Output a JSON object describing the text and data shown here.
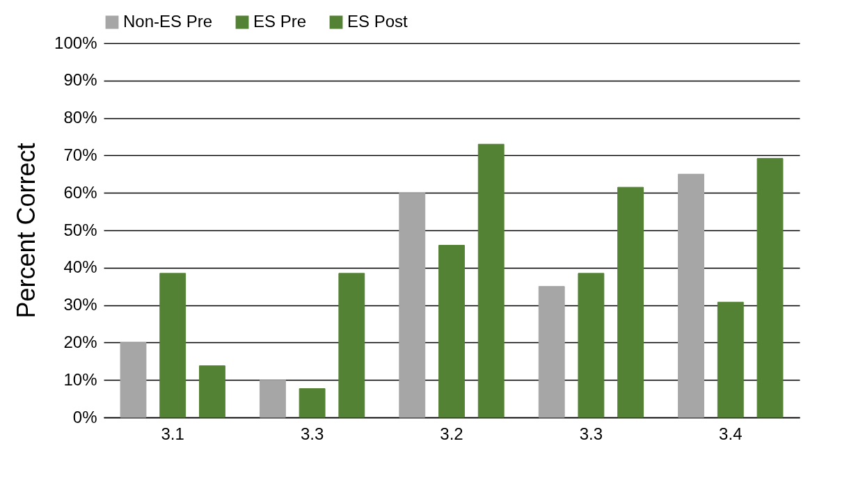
{
  "chart_data": {
    "type": "bar",
    "ylabel": "Percent Correct",
    "categories": [
      "3.1",
      "3.3",
      "3.2",
      "3.3",
      "3.4"
    ],
    "series": [
      {
        "name": "Non-ES Pre",
        "color": "#a6a6a6",
        "values": [
          20,
          10,
          60,
          35,
          65
        ]
      },
      {
        "name": "ES Pre",
        "color": "#548235",
        "values": [
          38.5,
          7.7,
          46,
          38.5,
          30.8
        ]
      },
      {
        "name": "ES Post",
        "color": "#548235",
        "values": [
          13.8,
          38.5,
          73,
          61.5,
          69.2
        ]
      }
    ],
    "ylim": [
      0,
      100
    ],
    "yticks": [
      {
        "value": 0,
        "label": "0%"
      },
      {
        "value": 10,
        "label": "10%"
      },
      {
        "value": 20,
        "label": "20%"
      },
      {
        "value": 30,
        "label": "30%"
      },
      {
        "value": 40,
        "label": "40%"
      },
      {
        "value": 50,
        "label": "50%"
      },
      {
        "value": 60,
        "label": "60%"
      },
      {
        "value": 70,
        "label": "70%"
      },
      {
        "value": 80,
        "label": "80%"
      },
      {
        "value": 90,
        "label": "90%"
      },
      {
        "value": 100,
        "label": "100%"
      }
    ],
    "grid": "y",
    "legend": "top"
  }
}
